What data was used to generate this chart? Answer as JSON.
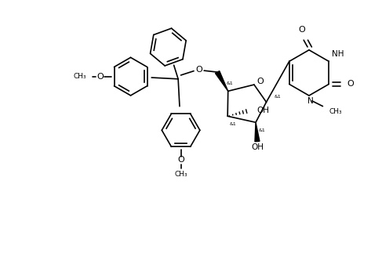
{
  "figure_width": 4.87,
  "figure_height": 3.46,
  "dpi": 100,
  "bg_color": "#ffffff",
  "lc": "#000000",
  "lw": 1.2,
  "fs": 7.0,
  "xlim": [
    0,
    10
  ],
  "ylim": [
    0,
    7.1
  ]
}
